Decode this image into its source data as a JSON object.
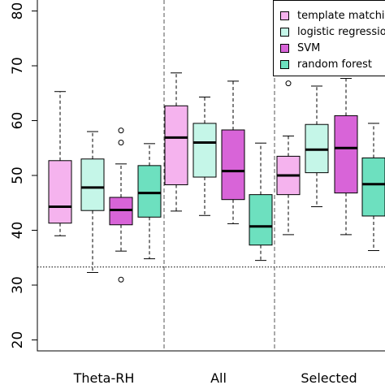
{
  "chart_data": {
    "type": "box",
    "categories": [
      "Theta-RH",
      "All",
      "Selected"
    ],
    "ylim": [
      18,
      82
    ],
    "yticks": [
      "20",
      "30",
      "40",
      "50",
      "60",
      "70",
      "80"
    ],
    "reference_line": 33.3,
    "grid": false,
    "legend_position": "top-right",
    "series": [
      {
        "name": "template matching",
        "color": "#f5b3ee",
        "boxes": [
          {
            "whislo": 39,
            "q1": 41.3,
            "med": 44.3,
            "q3": 52.7,
            "whishi": 65.3,
            "outliers": []
          },
          {
            "whislo": 43.5,
            "q1": 48.3,
            "med": 56.9,
            "q3": 62.7,
            "whishi": 68.7,
            "outliers": []
          },
          {
            "whislo": 39.2,
            "q1": 46.5,
            "med": 50.0,
            "q3": 53.5,
            "whishi": 57.2,
            "outliers": [
              66.8
            ]
          }
        ]
      },
      {
        "name": "logistic regression",
        "color": "#c5f6e8",
        "boxes": [
          {
            "whislo": 32.3,
            "q1": 43.6,
            "med": 47.8,
            "q3": 53.0,
            "whishi": 58.0,
            "outliers": []
          },
          {
            "whislo": 42.7,
            "q1": 49.7,
            "med": 56.0,
            "q3": 59.5,
            "whishi": 64.3,
            "outliers": []
          },
          {
            "whislo": 44.3,
            "q1": 50.5,
            "med": 54.7,
            "q3": 59.3,
            "whishi": 66.3,
            "outliers": []
          }
        ]
      },
      {
        "name": "SVM",
        "color": "#d864d8",
        "boxes": [
          {
            "whislo": 36.2,
            "q1": 41.0,
            "med": 43.7,
            "q3": 46.0,
            "whishi": 52.1,
            "outliers": [
              56.0,
              58.2,
              31.0
            ]
          },
          {
            "whislo": 41.2,
            "q1": 45.6,
            "med": 50.8,
            "q3": 58.3,
            "whishi": 67.2,
            "outliers": []
          },
          {
            "whislo": 39.2,
            "q1": 46.8,
            "med": 55.0,
            "q3": 60.9,
            "whishi": 67.7,
            "outliers": []
          }
        ]
      },
      {
        "name": "random forest",
        "color": "#6de0bf",
        "boxes": [
          {
            "whislo": 34.8,
            "q1": 42.4,
            "med": 46.8,
            "q3": 51.8,
            "whishi": 55.8,
            "outliers": []
          },
          {
            "whislo": 34.5,
            "q1": 37.3,
            "med": 40.7,
            "q3": 46.5,
            "whishi": 55.9,
            "outliers": []
          },
          {
            "whislo": 36.3,
            "q1": 42.6,
            "med": 48.4,
            "q3": 53.2,
            "whishi": 59.5,
            "outliers": []
          }
        ]
      }
    ]
  },
  "legend": {
    "labels": [
      "template matching",
      "logistic regression",
      "SVM",
      "random forest"
    ]
  }
}
